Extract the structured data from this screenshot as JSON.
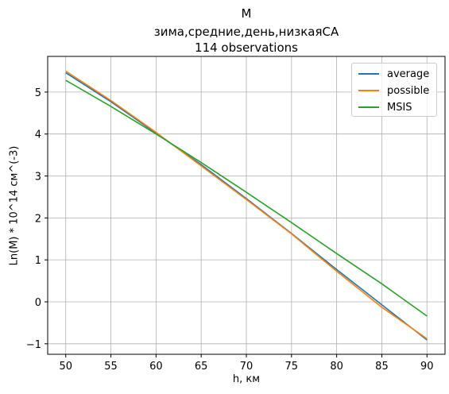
{
  "chart_data": {
    "type": "line",
    "title": "M",
    "subtitle": "зима,средние,день,низкаяСА",
    "subtitle2": "114 observations",
    "xlabel": "h, км",
    "ylabel": "Ln(M) * 10^14 см^(-3)",
    "xlim": [
      48,
      92
    ],
    "ylim": [
      -1.25,
      5.85
    ],
    "x_ticks": [
      50,
      55,
      60,
      65,
      70,
      75,
      80,
      85,
      90
    ],
    "y_ticks": [
      -1,
      0,
      1,
      2,
      3,
      4,
      5
    ],
    "grid": true,
    "legend_position": "top-right",
    "x": [
      50,
      55,
      60,
      65,
      70,
      75,
      80,
      85,
      90
    ],
    "series": [
      {
        "name": "average",
        "color": "#1f77b4",
        "values": [
          5.46,
          4.77,
          4.02,
          3.27,
          2.46,
          1.63,
          0.77,
          -0.07,
          -0.91
        ]
      },
      {
        "name": "possible",
        "color": "#ff7f0e",
        "values": [
          5.5,
          4.8,
          4.04,
          3.24,
          2.44,
          1.62,
          0.73,
          -0.13,
          -0.88
        ]
      },
      {
        "name": "MSIS",
        "color": "#2ca02c",
        "values": [
          5.28,
          4.66,
          4.0,
          3.32,
          2.61,
          1.89,
          1.15,
          0.43,
          -0.34
        ]
      }
    ]
  }
}
